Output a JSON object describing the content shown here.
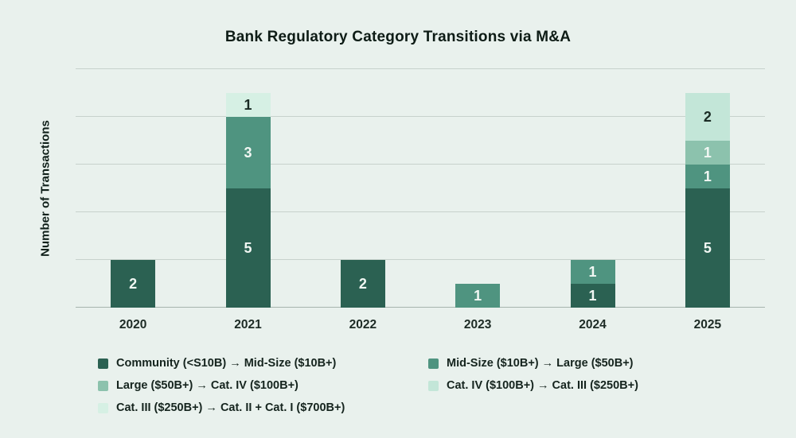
{
  "title": "Bank Regulatory Category Transitions via M&A",
  "y_axis_label": "Number of Transactions",
  "background_color": "#E9F1ED",
  "gridline_color": "#C7D2CC",
  "axis_line_color": "#A7B4AE",
  "chart_data": {
    "type": "bar",
    "stacked": true,
    "title": "Bank Regulatory Category Transitions via M&A",
    "xlabel": "",
    "ylabel": "Number of Transactions",
    "categories": [
      "2020",
      "2021",
      "2022",
      "2023",
      "2024",
      "2025"
    ],
    "series": [
      {
        "name": "Community (<S10B) → Mid-Size ($10B+)",
        "color": "#2B6152",
        "label_color": "#F1F7F3",
        "values": [
          2,
          5,
          2,
          0,
          1,
          5
        ]
      },
      {
        "name": "Mid-Size ($10B+) → Large ($50B+)",
        "color": "#4F9480",
        "label_color": "#F1F7F3",
        "values": [
          0,
          3,
          0,
          1,
          1,
          1
        ]
      },
      {
        "name": "Large ($50B+) → Cat. IV ($100B+)",
        "color": "#8CC2AD",
        "label_color": "#F1F7F3",
        "values": [
          0,
          0,
          0,
          0,
          0,
          1
        ]
      },
      {
        "name": "Cat. IV ($100B+) → Cat. III ($250B+)",
        "color": "#C3E6D8",
        "label_color": "#1A2B24",
        "values": [
          0,
          0,
          0,
          0,
          0,
          2
        ]
      },
      {
        "name": "Cat. III ($250B+) → Cat. II + Cat. I ($700B+)",
        "color": "#D6F0E4",
        "label_color": "#1A2B24",
        "values": [
          0,
          1,
          0,
          0,
          0,
          0
        ]
      }
    ],
    "bar_totals": [
      2,
      9,
      2,
      1,
      2,
      9
    ],
    "ylim": [
      0,
      10
    ],
    "gridline_step": 2,
    "grid": true,
    "y_tick_labels_shown": false,
    "legend_position": "bottom",
    "legend_rows": [
      [
        0,
        1
      ],
      [
        2,
        3
      ],
      [
        4
      ]
    ]
  }
}
